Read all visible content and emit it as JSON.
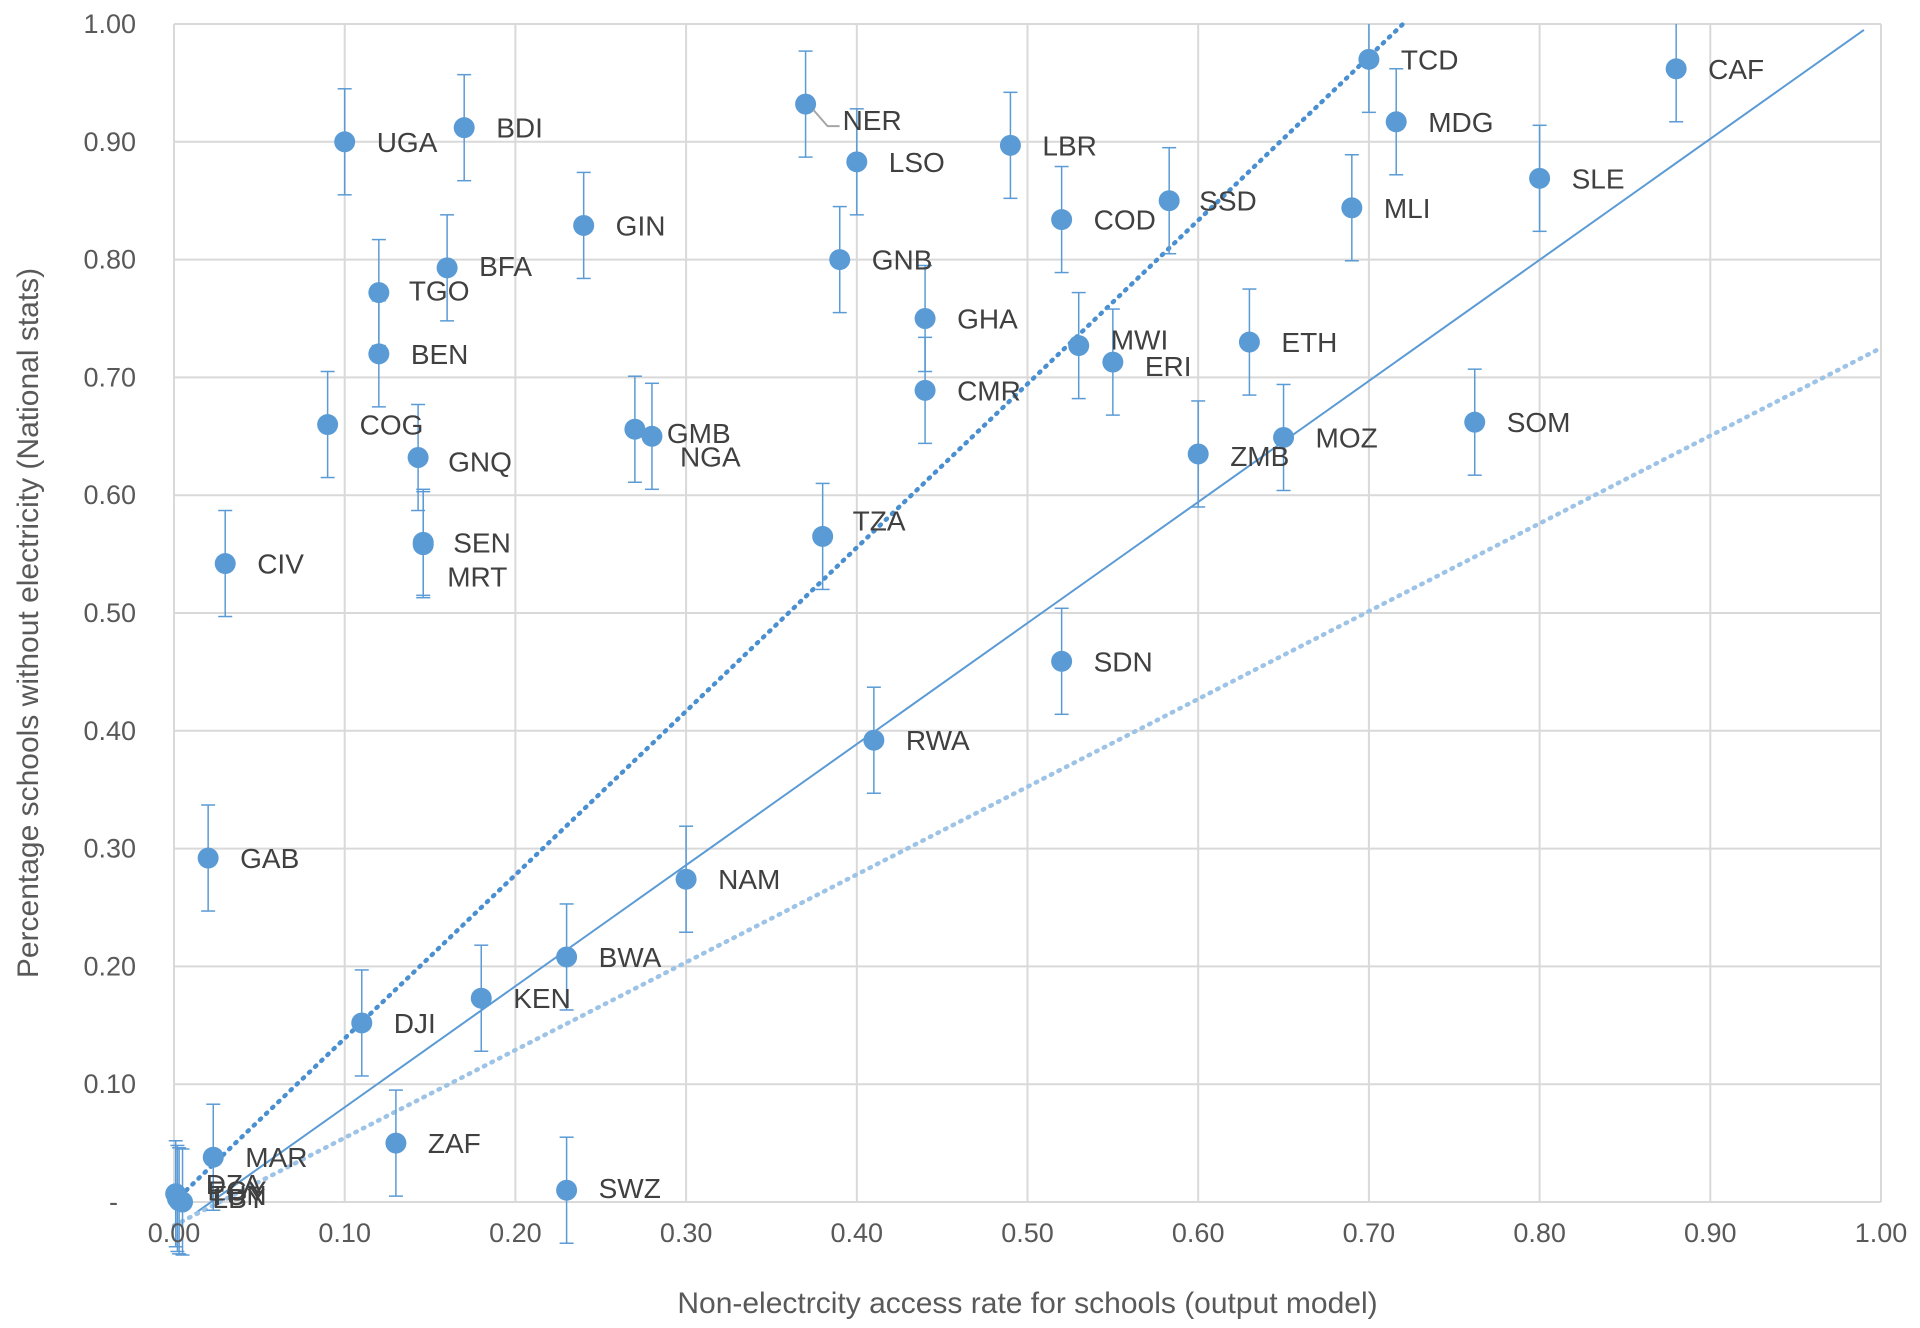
{
  "chart_data": {
    "type": "scatter",
    "title": "",
    "xlabel": "Non-electrcity access  rate for schools (output model)",
    "ylabel": "Percentage schools without electricity (National stats)",
    "xlim": [
      0,
      1
    ],
    "ylim": [
      0,
      1
    ],
    "grid": true,
    "x_ticks": [
      "0.00",
      "0.10",
      "0.20",
      "0.30",
      "0.40",
      "0.50",
      "0.60",
      "0.70",
      "0.80",
      "0.90",
      "1.00"
    ],
    "y_ticks": [
      "-",
      "0.10",
      "0.20",
      "0.30",
      "0.40",
      "0.50",
      "0.60",
      "0.70",
      "0.80",
      "0.90",
      "1.00"
    ],
    "error_bar": 0.045,
    "colors": {
      "points": "#5b9bd5",
      "identity_line": "#5b9bd5",
      "upper_dotted": "#4a8fd0",
      "lower_dotted": "#9dc3e6",
      "grid": "#d9d9d9"
    },
    "reference_lines": [
      {
        "style": "solid",
        "x": [
          0.012,
          0.99
        ],
        "y": [
          -0.01,
          0.995
        ]
      },
      {
        "style": "dotted",
        "x": [
          0.0,
          0.72
        ],
        "y": [
          0.0,
          1.0
        ]
      },
      {
        "style": "dotted-light",
        "x": [
          0.0,
          1.0
        ],
        "y": [
          -0.02,
          0.725
        ]
      }
    ],
    "points": [
      {
        "label": "UGA",
        "x": 0.1,
        "y": 0.9
      },
      {
        "label": "BDI",
        "x": 0.17,
        "y": 0.912
      },
      {
        "label": "GIN",
        "x": 0.24,
        "y": 0.829
      },
      {
        "label": "NER",
        "x": 0.37,
        "y": 0.932
      },
      {
        "label": "LSO",
        "x": 0.4,
        "y": 0.883
      },
      {
        "label": "LBR",
        "x": 0.49,
        "y": 0.897
      },
      {
        "label": "TCD",
        "x": 0.7,
        "y": 0.97
      },
      {
        "label": "CAF",
        "x": 0.88,
        "y": 0.962
      },
      {
        "label": "MDG",
        "x": 0.716,
        "y": 0.917
      },
      {
        "label": "SLE",
        "x": 0.8,
        "y": 0.869
      },
      {
        "label": "MLI",
        "x": 0.69,
        "y": 0.844
      },
      {
        "label": "SSD",
        "x": 0.583,
        "y": 0.85
      },
      {
        "label": "COD",
        "x": 0.52,
        "y": 0.834
      },
      {
        "label": "GNB",
        "x": 0.39,
        "y": 0.8
      },
      {
        "label": "BFA",
        "x": 0.16,
        "y": 0.793
      },
      {
        "label": "TGO",
        "x": 0.12,
        "y": 0.772
      },
      {
        "label": "GHA",
        "x": 0.44,
        "y": 0.75
      },
      {
        "label": "BEN",
        "x": 0.12,
        "y": 0.72
      },
      {
        "label": "MWI",
        "x": 0.53,
        "y": 0.727
      },
      {
        "label": "ERI",
        "x": 0.55,
        "y": 0.713
      },
      {
        "label": "ETH",
        "x": 0.63,
        "y": 0.73
      },
      {
        "label": "CMR",
        "x": 0.44,
        "y": 0.689
      },
      {
        "label": "COG",
        "x": 0.09,
        "y": 0.66
      },
      {
        "label": "SOM",
        "x": 0.762,
        "y": 0.662
      },
      {
        "label": "GMB",
        "x": 0.27,
        "y": 0.656
      },
      {
        "label": "NGA",
        "x": 0.28,
        "y": 0.65
      },
      {
        "label": "MOZ",
        "x": 0.65,
        "y": 0.649
      },
      {
        "label": "ZMB",
        "x": 0.6,
        "y": 0.635
      },
      {
        "label": "GNQ",
        "x": 0.143,
        "y": 0.632
      },
      {
        "label": "TZA",
        "x": 0.38,
        "y": 0.565
      },
      {
        "label": "SEN",
        "x": 0.146,
        "y": 0.56
      },
      {
        "label": "MRT",
        "x": 0.146,
        "y": 0.558
      },
      {
        "label": "CIV",
        "x": 0.03,
        "y": 0.542
      },
      {
        "label": "SDN",
        "x": 0.52,
        "y": 0.459
      },
      {
        "label": "RWA",
        "x": 0.41,
        "y": 0.392
      },
      {
        "label": "GAB",
        "x": 0.02,
        "y": 0.292
      },
      {
        "label": "NAM",
        "x": 0.3,
        "y": 0.274
      },
      {
        "label": "BWA",
        "x": 0.23,
        "y": 0.208
      },
      {
        "label": "KEN",
        "x": 0.18,
        "y": 0.173
      },
      {
        "label": "DJI",
        "x": 0.11,
        "y": 0.152
      },
      {
        "label": "ZAF",
        "x": 0.13,
        "y": 0.05
      },
      {
        "label": "MAR",
        "x": 0.023,
        "y": 0.038
      },
      {
        "label": "SWZ",
        "x": 0.23,
        "y": 0.01
      },
      {
        "label": "DZA",
        "x": 0.001,
        "y": 0.007
      },
      {
        "label": "EGY",
        "x": 0.002,
        "y": 0.003
      },
      {
        "label": "TUN",
        "x": 0.003,
        "y": 0.001
      },
      {
        "label": "LBY",
        "x": 0.005,
        "y": 0.0
      }
    ]
  }
}
